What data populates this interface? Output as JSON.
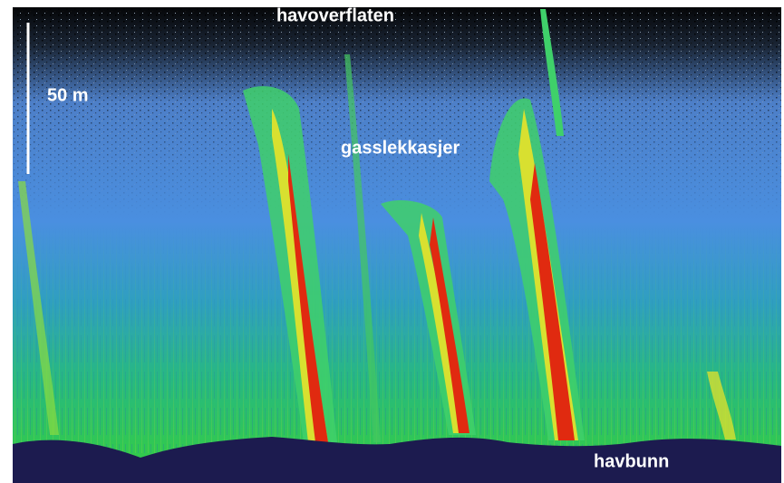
{
  "labels": {
    "surface": "havoverflaten",
    "scale": "50 m",
    "plumes": "gasslekkasjer",
    "seabed": "havbunn"
  }
}
